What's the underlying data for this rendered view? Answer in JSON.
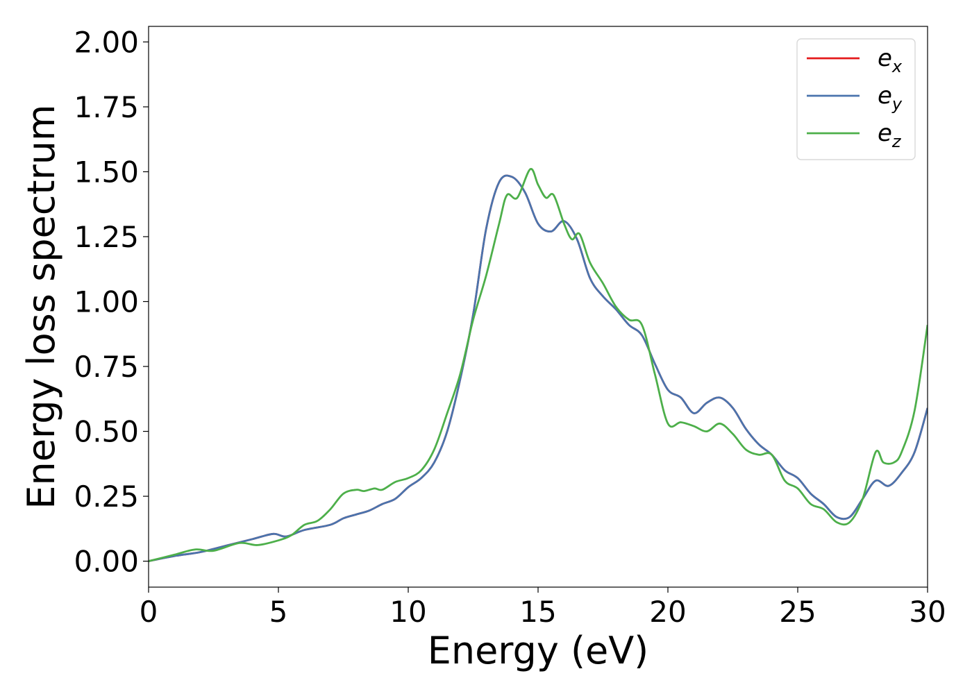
{
  "chart_data": {
    "type": "line",
    "title": "",
    "xlabel": "Energy (eV)",
    "ylabel": "Energy loss spectrum",
    "xlim": [
      0,
      30
    ],
    "ylim": [
      -0.1,
      2.06
    ],
    "xticks": [
      0,
      5,
      10,
      15,
      20,
      25,
      30
    ],
    "xtick_labels": [
      "0",
      "5",
      "10",
      "15",
      "20",
      "25",
      "30"
    ],
    "yticks": [
      0.0,
      0.25,
      0.5,
      0.75,
      1.0,
      1.25,
      1.5,
      1.75,
      2.0
    ],
    "ytick_labels": [
      "0.00",
      "0.25",
      "0.50",
      "0.75",
      "1.00",
      "1.25",
      "1.50",
      "1.75",
      "2.00"
    ],
    "grid": false,
    "legend": "top-right",
    "series": [
      {
        "name": "e",
        "subscript": "x",
        "color": "#e41a1c",
        "x": [
          0,
          1,
          2,
          3,
          4,
          4.8,
          5.3,
          6,
          7,
          7.5,
          8,
          8.5,
          9,
          9.5,
          10,
          10.5,
          11,
          11.5,
          12,
          12.5,
          13,
          13.5,
          14,
          14.5,
          15,
          15.5,
          16,
          16.5,
          17,
          17.5,
          18,
          18.5,
          19,
          19.5,
          20,
          20.5,
          21,
          21.5,
          22,
          22.5,
          23,
          23.5,
          24,
          24.5,
          25,
          25.5,
          26,
          26.5,
          27,
          27.5,
          28,
          28.5,
          29,
          29.5,
          30
        ],
        "y": [
          0.0,
          0.02,
          0.035,
          0.06,
          0.085,
          0.105,
          0.095,
          0.12,
          0.14,
          0.165,
          0.18,
          0.195,
          0.22,
          0.24,
          0.285,
          0.32,
          0.38,
          0.5,
          0.7,
          0.95,
          1.28,
          1.46,
          1.48,
          1.42,
          1.3,
          1.27,
          1.31,
          1.24,
          1.09,
          1.02,
          0.97,
          0.91,
          0.87,
          0.76,
          0.66,
          0.63,
          0.57,
          0.61,
          0.63,
          0.59,
          0.51,
          0.45,
          0.41,
          0.35,
          0.32,
          0.26,
          0.22,
          0.17,
          0.17,
          0.24,
          0.31,
          0.29,
          0.34,
          0.42,
          0.59
        ]
      },
      {
        "name": "e",
        "subscript": "y",
        "color": "#4a74ad",
        "x": [
          0,
          1,
          2,
          3,
          4,
          4.8,
          5.3,
          6,
          7,
          7.5,
          8,
          8.5,
          9,
          9.5,
          10,
          10.5,
          11,
          11.5,
          12,
          12.5,
          13,
          13.5,
          14,
          14.5,
          15,
          15.5,
          16,
          16.5,
          17,
          17.5,
          18,
          18.5,
          19,
          19.5,
          20,
          20.5,
          21,
          21.5,
          22,
          22.5,
          23,
          23.5,
          24,
          24.5,
          25,
          25.5,
          26,
          26.5,
          27,
          27.5,
          28,
          28.5,
          29,
          29.5,
          30
        ],
        "y": [
          0.0,
          0.02,
          0.035,
          0.06,
          0.085,
          0.105,
          0.095,
          0.12,
          0.14,
          0.165,
          0.18,
          0.195,
          0.22,
          0.24,
          0.285,
          0.32,
          0.38,
          0.5,
          0.7,
          0.95,
          1.28,
          1.46,
          1.48,
          1.42,
          1.3,
          1.27,
          1.31,
          1.24,
          1.09,
          1.02,
          0.97,
          0.91,
          0.87,
          0.76,
          0.66,
          0.63,
          0.57,
          0.61,
          0.63,
          0.59,
          0.51,
          0.45,
          0.41,
          0.35,
          0.32,
          0.26,
          0.22,
          0.17,
          0.17,
          0.24,
          0.31,
          0.29,
          0.34,
          0.42,
          0.59
        ]
      },
      {
        "name": "e",
        "subscript": "z",
        "color": "#4daf4a",
        "x": [
          0,
          1,
          1.8,
          2.5,
          3.5,
          4.2,
          5,
          5.5,
          6,
          6.5,
          7,
          7.5,
          8,
          8.3,
          8.7,
          9,
          9.5,
          10,
          10.5,
          11,
          11.5,
          12,
          12.5,
          13,
          13.5,
          13.8,
          14.2,
          14.7,
          15,
          15.3,
          15.6,
          16,
          16.3,
          16.6,
          17,
          17.5,
          18,
          18.5,
          19,
          19.5,
          20,
          20.5,
          21,
          21.5,
          22,
          22.5,
          23,
          23.5,
          24,
          24.5,
          25,
          25.5,
          26,
          26.5,
          27,
          27.5,
          28,
          28.3,
          28.7,
          29,
          29.5,
          30
        ],
        "y": [
          0.0,
          0.025,
          0.045,
          0.04,
          0.07,
          0.062,
          0.08,
          0.1,
          0.14,
          0.155,
          0.2,
          0.26,
          0.275,
          0.27,
          0.28,
          0.275,
          0.305,
          0.32,
          0.35,
          0.43,
          0.57,
          0.72,
          0.93,
          1.1,
          1.3,
          1.41,
          1.4,
          1.51,
          1.45,
          1.4,
          1.41,
          1.3,
          1.24,
          1.26,
          1.15,
          1.07,
          0.98,
          0.93,
          0.91,
          0.72,
          0.53,
          0.535,
          0.52,
          0.5,
          0.53,
          0.49,
          0.43,
          0.41,
          0.41,
          0.31,
          0.28,
          0.22,
          0.2,
          0.15,
          0.15,
          0.24,
          0.42,
          0.38,
          0.38,
          0.42,
          0.58,
          0.91
        ]
      }
    ]
  }
}
